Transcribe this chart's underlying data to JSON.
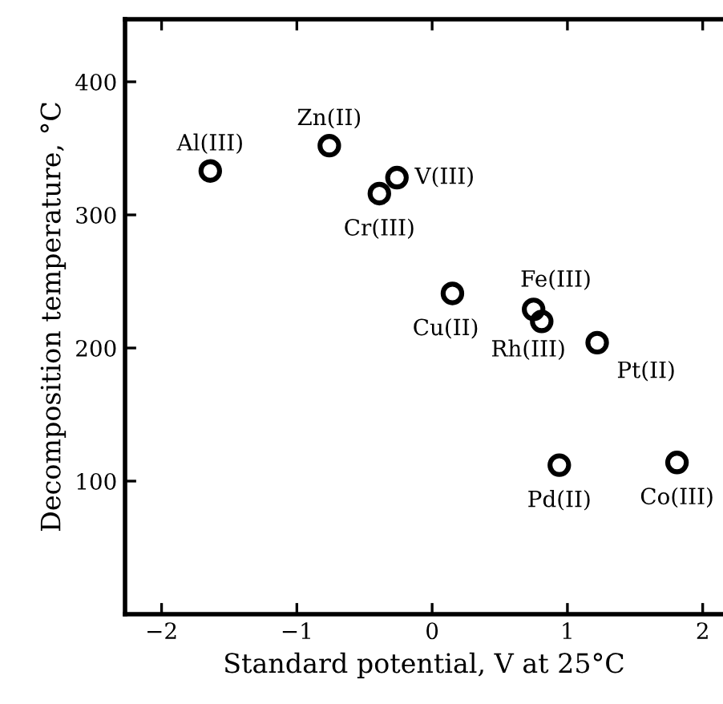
{
  "chart_data": {
    "type": "scatter",
    "xlabel": "Standard potential, V at 25°C",
    "ylabel": "Decomposition temperature, °C",
    "x": [
      -1.64,
      -0.76,
      -0.39,
      -0.26,
      0.15,
      0.75,
      0.81,
      1.22,
      0.94,
      1.81
    ],
    "series": [
      {
        "color": "#000000",
        "values": [
          333,
          352,
          316,
          328,
          241,
          229,
          220,
          204,
          112,
          114
        ]
      }
    ],
    "marker": "circle",
    "grid": false,
    "legend": false,
    "xlim": [
      -2.27,
      2.15
    ],
    "xticks": [
      {
        "value": -2,
        "label": "−2"
      },
      {
        "value": -1,
        "label": "−1"
      },
      0,
      1,
      2
    ],
    "ylim": [
      0,
      447
    ],
    "yticks": [
      {
        "value": 0,
        "label": null
      },
      100,
      200,
      300,
      400
    ],
    "annotations": [
      {
        "text": "Al(III)",
        "x": -1.64,
        "y": 333
      },
      {
        "text": "Zn(II)",
        "x": -0.76,
        "y": 352
      },
      {
        "text": "Cr(III)",
        "x": -0.39,
        "y": 316
      },
      {
        "text": "V(III)",
        "x": -0.26,
        "y": 328
      },
      {
        "text": "Cu(II)",
        "x": 0.15,
        "y": 241
      },
      {
        "text": "Fe(III)",
        "x": 0.75,
        "y": 229
      },
      {
        "text": "Rh(III)",
        "x": 0.81,
        "y": 220
      },
      {
        "text": "Pt(II)",
        "x": 1.22,
        "y": 204
      },
      {
        "text": "Pd(II)",
        "x": 0.94,
        "y": 112
      },
      {
        "text": "Co(III)",
        "x": 1.81,
        "y": 114
      }
    ]
  }
}
